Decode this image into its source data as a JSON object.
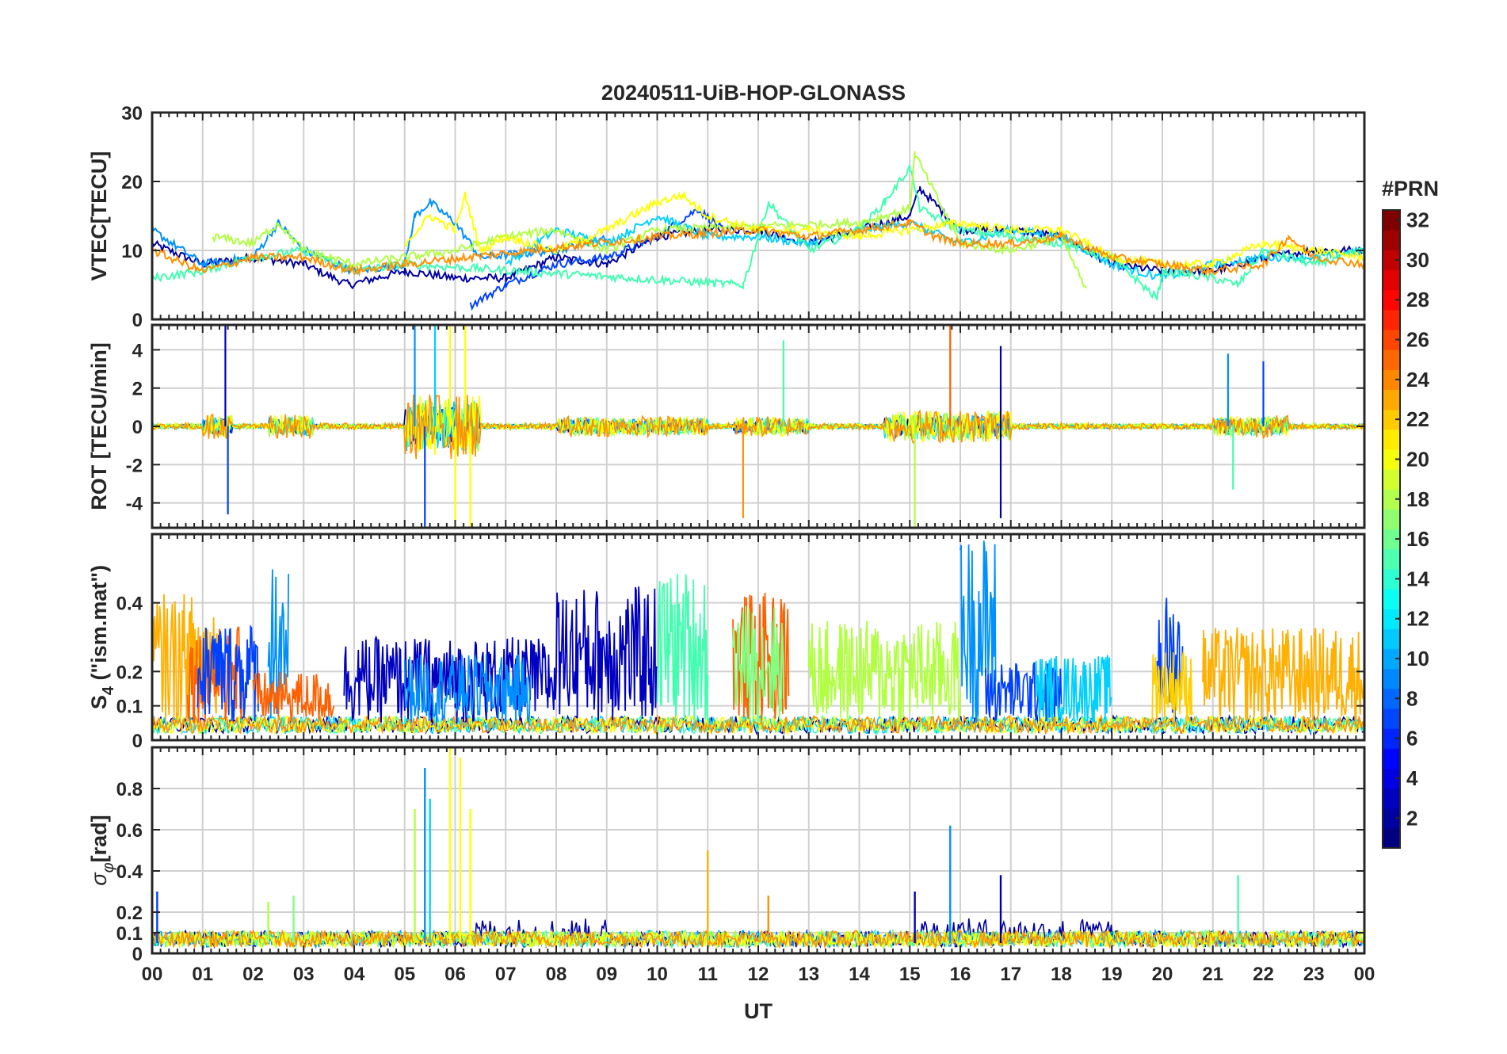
{
  "chart_data": {
    "type": "line",
    "title": "20240511-UiB-HOP-GLONASS",
    "xlabel": "UT",
    "x_tick_labels": [
      "00",
      "01",
      "02",
      "03",
      "04",
      "05",
      "06",
      "07",
      "08",
      "09",
      "10",
      "11",
      "12",
      "13",
      "14",
      "15",
      "16",
      "17",
      "18",
      "19",
      "20",
      "21",
      "22",
      "23",
      "00"
    ],
    "xlim": [
      0,
      24
    ],
    "colorbar": {
      "label": "#PRN",
      "range": [
        1,
        32
      ],
      "ticks": [
        "2",
        "4",
        "6",
        "8",
        "10",
        "12",
        "14",
        "16",
        "18",
        "20",
        "22",
        "24",
        "26",
        "28",
        "30",
        "32"
      ],
      "colormap": "jet"
    },
    "panels": [
      {
        "id": "vtec",
        "ylabel": "VTEC[TECU]",
        "ylim": [
          0,
          30
        ],
        "yticks": [
          0,
          10,
          20,
          30
        ],
        "ytick_labels": [
          "0",
          "10",
          "20",
          "30"
        ],
        "series": [
          {
            "prn": 3,
            "color": "#0000a0",
            "x": [
              0.0,
              1.0,
              2.0,
              3.0,
              3.9,
              5.0,
              6.0,
              7.0,
              8.0,
              9.0,
              10.0,
              11.0,
              12.0,
              13.0,
              14.0,
              15.0,
              15.2,
              16.0,
              17.0,
              18.0,
              19.0,
              20.0,
              21.0,
              22.0,
              23.0,
              24.0
            ],
            "y": [
              11,
              8,
              9,
              8,
              5,
              7,
              6,
              6,
              9,
              8,
              12,
              13,
              13,
              11,
              13,
              15,
              19,
              13,
              13,
              12,
              8,
              7,
              7,
              9,
              10,
              10
            ]
          },
          {
            "prn": 6,
            "color": "#0040ff",
            "x": [
              6.3,
              7.0,
              8.0,
              9.0,
              10.0,
              10.8,
              11.3
            ],
            "y": [
              2,
              5,
              8,
              9,
              12,
              16,
              13
            ]
          },
          {
            "prn": 9,
            "color": "#0090ff",
            "x": [
              0.0,
              1.0,
              2.0,
              2.5,
              3.0,
              4.0,
              5.0,
              5.2,
              5.5,
              6.0,
              6.5,
              8.0,
              9.0
            ],
            "y": [
              13,
              8,
              9,
              14,
              10,
              7,
              8,
              15,
              17,
              14,
              9,
              10,
              12
            ]
          },
          {
            "prn": 12,
            "color": "#00d0ff",
            "x": [
              7.0,
              8.0,
              9.0,
              10.0,
              11.0,
              12.0,
              13.0,
              14.0,
              15.0,
              16.0,
              17.0,
              18.0,
              19.0,
              20.0,
              21.0,
              22.0,
              23.0,
              24.0
            ],
            "y": [
              8,
              13,
              11,
              15,
              12,
              12,
              11,
              13,
              14,
              11,
              13,
              12,
              8,
              6,
              8,
              9,
              9,
              10
            ]
          },
          {
            "prn": 15,
            "color": "#40ffb0",
            "x": [
              0.0,
              1.0,
              2.0,
              3.0,
              4.0,
              5.0,
              11.7,
              12.0,
              12.2,
              13.0,
              14.0,
              14.5,
              15.0,
              15.2,
              16.0,
              17.0,
              18.0,
              19.0,
              19.9,
              20.0,
              21.0,
              21.5,
              22.0,
              23.0,
              24.0
            ],
            "y": [
              6,
              7,
              9,
              10,
              7,
              8,
              5,
              12,
              17,
              10,
              13,
              17,
              22,
              16,
              13,
              12,
              11,
              9,
              3,
              7,
              6,
              5,
              10,
              8,
              10
            ]
          },
          {
            "prn": 18,
            "color": "#b0ff40",
            "x": [
              1.2,
              2.0,
              2.5,
              3.0,
              4.0,
              5.0,
              6.0,
              7.0,
              8.0,
              9.0,
              10.0,
              14.0,
              15.0,
              15.1,
              16.0,
              17.0,
              18.0,
              18.5
            ],
            "y": [
              12,
              11,
              14,
              10,
              8,
              9,
              10,
              12,
              13,
              10,
              13,
              14,
              16,
              24,
              11,
              10,
              12,
              4
            ]
          },
          {
            "prn": 20,
            "color": "#ffff00",
            "x": [
              5.0,
              5.5,
              6.0,
              6.2,
              6.5,
              7.0,
              8.0,
              9.0,
              10.0,
              10.5,
              11.0,
              12.0,
              13.0,
              14.0,
              15.0,
              16.0,
              17.0,
              18.0,
              19.0,
              20.0,
              21.0,
              22.0,
              23.0,
              24.0
            ],
            "y": [
              11,
              15,
              13,
              18,
              10,
              12,
              10,
              13,
              17,
              18,
              15,
              13,
              13,
              12,
              13,
              14,
              13,
              13,
              9,
              8,
              8,
              11,
              10,
              9
            ]
          },
          {
            "prn": 23,
            "color": "#ff9000",
            "x": [
              0.0,
              1.0,
              2.0,
              3.0,
              4.0,
              5.0,
              10.0,
              12.0,
              13.0,
              14.0,
              15.0,
              15.5,
              16.0,
              17.0,
              18.0,
              19.0,
              20.0,
              21.0,
              22.0,
              22.5,
              23.0,
              24.0
            ],
            "y": [
              10,
              7,
              9,
              9,
              7,
              8,
              12,
              13,
              12,
              13,
              14,
              12,
              11,
              11,
              12,
              9,
              8,
              7,
              8,
              12,
              9,
              8
            ]
          }
        ]
      },
      {
        "id": "rot",
        "ylabel": "ROT [TECU/min]",
        "ylim": [
          -5.3,
          5.3
        ],
        "yticks": [
          -4,
          -2,
          0,
          2,
          4
        ],
        "ytick_labels": [
          "-4",
          "-2",
          "0",
          "2",
          "4"
        ],
        "active_intervals": [
          [
            0,
            3.2
          ],
          [
            3.5,
            6.5
          ],
          [
            6.5,
            11.5
          ],
          [
            11.5,
            16
          ],
          [
            16,
            19
          ],
          [
            19,
            24
          ]
        ],
        "spikes": [
          {
            "x": 1.45,
            "y": 5.3,
            "color": "#0000c0"
          },
          {
            "x": 1.5,
            "y": -4.6,
            "color": "#0040ff"
          },
          {
            "x": 5.2,
            "y": 5.3,
            "color": "#0090ff"
          },
          {
            "x": 5.4,
            "y": -5.3,
            "color": "#0040ff"
          },
          {
            "x": 5.6,
            "y": 5.3,
            "color": "#00d0ff"
          },
          {
            "x": 5.9,
            "y": 5.3,
            "color": "#ffff00"
          },
          {
            "x": 6.0,
            "y": -5.3,
            "color": "#ffff00"
          },
          {
            "x": 6.2,
            "y": 5.3,
            "color": "#ffff00"
          },
          {
            "x": 6.3,
            "y": -5.3,
            "color": "#ffff00"
          },
          {
            "x": 11.7,
            "y": -4.8,
            "color": "#ff9000"
          },
          {
            "x": 12.5,
            "y": 4.5,
            "color": "#40ffb0"
          },
          {
            "x": 15.1,
            "y": -5.3,
            "color": "#b0ff40"
          },
          {
            "x": 15.8,
            "y": 5.3,
            "color": "#ff6000"
          },
          {
            "x": 16.8,
            "y": -4.8,
            "color": "#0000a0"
          },
          {
            "x": 16.8,
            "y": 4.2,
            "color": "#0000a0"
          },
          {
            "x": 21.3,
            "y": 3.8,
            "color": "#0090ff"
          },
          {
            "x": 21.4,
            "y": -3.3,
            "color": "#40ffb0"
          },
          {
            "x": 22.0,
            "y": 3.4,
            "color": "#0040ff"
          }
        ]
      },
      {
        "id": "s4",
        "ylabel": "S4 (\"ism.mat\")",
        "ylabel_main": "S",
        "ylabel_sub": "4",
        "ylabel_rest": " (\"ism.mat\")",
        "ylim": [
          0,
          0.6
        ],
        "yticks": [
          0,
          0.1,
          0.2,
          0.4
        ],
        "ytick_labels": [
          "0",
          "0.1",
          "0.2",
          "0.4"
        ],
        "bursts": [
          {
            "x0": 0.0,
            "x1": 1.3,
            "level": 0.38,
            "color": "#ffb000"
          },
          {
            "x0": 0.7,
            "x1": 1.8,
            "level": 0.28,
            "color": "#ff6000"
          },
          {
            "x0": 0.9,
            "x1": 2.1,
            "level": 0.3,
            "color": "#0040ff"
          },
          {
            "x0": 2.3,
            "x1": 2.7,
            "level": 0.5,
            "color": "#0090ff"
          },
          {
            "x0": 2.0,
            "x1": 3.6,
            "level": 0.15,
            "color": "#ff6000"
          },
          {
            "x0": 3.8,
            "x1": 8.0,
            "level": 0.25,
            "color": "#0000c0"
          },
          {
            "x0": 5.0,
            "x1": 7.5,
            "level": 0.2,
            "color": "#0090ff"
          },
          {
            "x0": 8.0,
            "x1": 10.0,
            "level": 0.4,
            "color": "#0000c0"
          },
          {
            "x0": 10.0,
            "x1": 11.0,
            "level": 0.45,
            "color": "#40ffb0"
          },
          {
            "x0": 11.5,
            "x1": 12.6,
            "level": 0.38,
            "color": "#ff6000"
          },
          {
            "x0": 11.5,
            "x1": 12.5,
            "level": 0.35,
            "color": "#80ff80"
          },
          {
            "x0": 13.0,
            "x1": 16.0,
            "level": 0.3,
            "color": "#b0ff40"
          },
          {
            "x0": 16.0,
            "x1": 16.7,
            "level": 0.55,
            "color": "#0090ff"
          },
          {
            "x0": 16.5,
            "x1": 18.0,
            "level": 0.18,
            "color": "#0040ff"
          },
          {
            "x0": 17.5,
            "x1": 19.0,
            "level": 0.2,
            "color": "#00d0ff"
          },
          {
            "x0": 19.9,
            "x1": 20.4,
            "level": 0.38,
            "color": "#0040ff"
          },
          {
            "x0": 19.8,
            "x1": 20.6,
            "level": 0.22,
            "color": "#ffd000"
          },
          {
            "x0": 20.8,
            "x1": 24.0,
            "level": 0.28,
            "color": "#ffb000"
          }
        ]
      },
      {
        "id": "sigma_phi",
        "ylabel": "σφ[rad]",
        "ylabel_main": "σ",
        "ylabel_sub": "φ",
        "ylabel_rest": "[rad]",
        "ylim": [
          0,
          1.0
        ],
        "yticks": [
          0,
          0.1,
          0.2,
          0.4,
          0.6,
          0.8
        ],
        "ytick_labels": [
          "0",
          "0.1",
          "0.2",
          "0.4",
          "0.6",
          "0.8"
        ],
        "spikes": [
          {
            "x": 0.1,
            "y": 0.3,
            "color": "#0040ff"
          },
          {
            "x": 2.3,
            "y": 0.25,
            "color": "#b0ff40"
          },
          {
            "x": 2.8,
            "y": 0.28,
            "color": "#80ff80"
          },
          {
            "x": 5.2,
            "y": 0.7,
            "color": "#b0ff40"
          },
          {
            "x": 5.4,
            "y": 0.9,
            "color": "#0090ff"
          },
          {
            "x": 5.5,
            "y": 0.75,
            "color": "#00d0ff"
          },
          {
            "x": 5.9,
            "y": 1.0,
            "color": "#ffff00"
          },
          {
            "x": 6.1,
            "y": 0.95,
            "color": "#ffff00"
          },
          {
            "x": 6.3,
            "y": 0.7,
            "color": "#ffff00"
          },
          {
            "x": 11.0,
            "y": 0.5,
            "color": "#ffb000"
          },
          {
            "x": 12.2,
            "y": 0.28,
            "color": "#ff9000"
          },
          {
            "x": 15.1,
            "y": 0.3,
            "color": "#0000c0"
          },
          {
            "x": 15.8,
            "y": 0.62,
            "color": "#0090ff"
          },
          {
            "x": 16.8,
            "y": 0.38,
            "color": "#0000a0"
          },
          {
            "x": 21.5,
            "y": 0.38,
            "color": "#40ffb0"
          }
        ]
      }
    ]
  }
}
